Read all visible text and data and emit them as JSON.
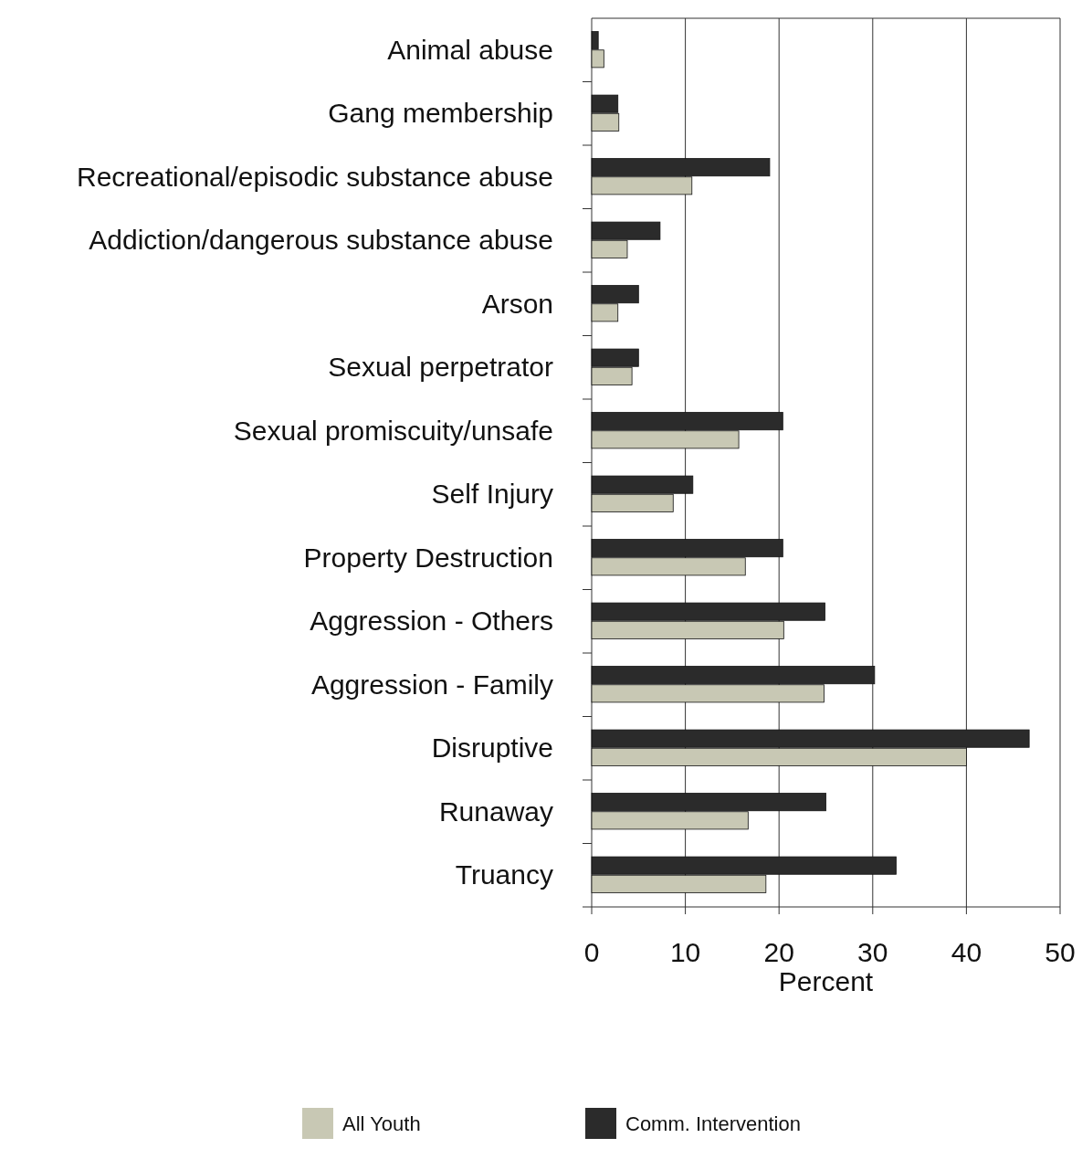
{
  "chart_data": {
    "type": "bar",
    "orientation": "horizontal",
    "xlabel": "Percent",
    "categories": [
      "Animal abuse",
      "Gang membership",
      "Recreational/episodic substance abuse",
      "Addiction/dangerous substance abuse",
      "Arson",
      "Sexual perpetrator",
      "Sexual promiscuity/unsafe",
      "Self Injury",
      "Property Destruction",
      "Aggression - Others",
      "Aggression - Family",
      "Disruptive",
      "Runaway",
      "Truancy"
    ],
    "series": [
      {
        "name": "All Youth",
        "color": "#c8c8b4",
        "values": [
          1.3,
          2.9,
          10.7,
          3.8,
          2.8,
          4.3,
          15.7,
          8.7,
          16.4,
          20.5,
          24.8,
          40,
          16.7,
          18.6
        ]
      },
      {
        "name": "Comm. Intervention",
        "color": "#2b2b2b",
        "values": [
          0.7,
          2.8,
          19,
          7.3,
          5,
          5,
          20.4,
          10.8,
          20.4,
          24.9,
          30.2,
          46.7,
          25,
          32.5
        ]
      }
    ],
    "xlim": [
      0,
      50
    ],
    "xticks": [
      0,
      10,
      20,
      30,
      40,
      50
    ],
    "grid": "x",
    "legend": "bottom"
  }
}
